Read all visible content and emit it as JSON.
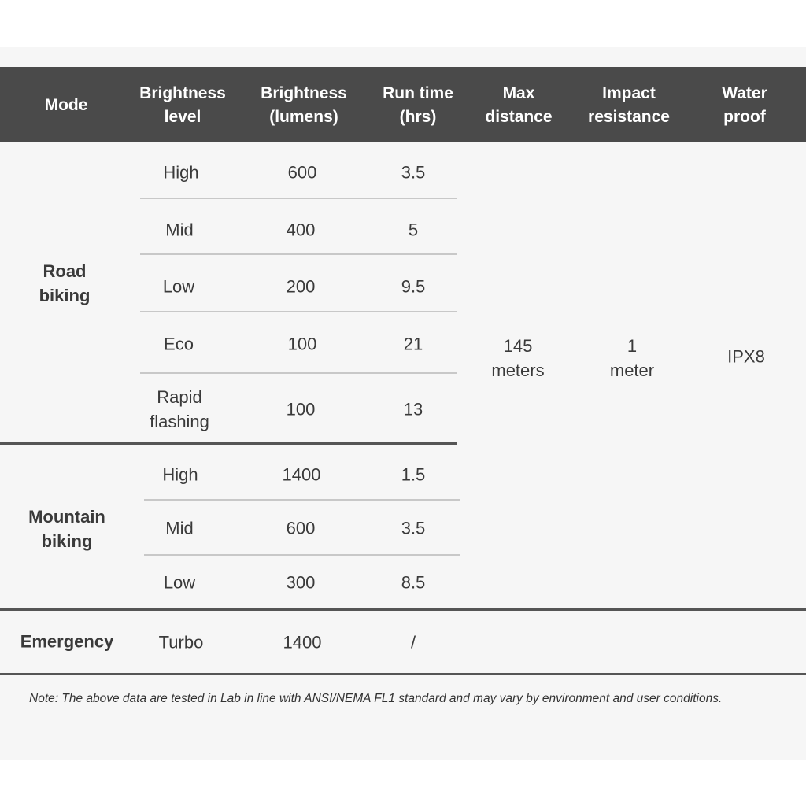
{
  "headers": [
    "Mode",
    "Brightness\nlevel",
    "Brightness\n(lumens)",
    "Run time\n(hrs)",
    "Max\ndistance",
    "Impact\nresistance",
    "Water\nproof"
  ],
  "groups": [
    {
      "mode": "Road\nbiking",
      "rows": [
        {
          "level": "High",
          "lumens": "600",
          "runtime": "3.5"
        },
        {
          "level": "Mid",
          "lumens": "400",
          "runtime": "5"
        },
        {
          "level": "Low",
          "lumens": "200",
          "runtime": "9.5"
        },
        {
          "level": "Eco",
          "lumens": "100",
          "runtime": "21"
        },
        {
          "level": "Rapid\nflashing",
          "lumens": "100",
          "runtime": "13"
        }
      ]
    },
    {
      "mode": "Mountain\nbiking",
      "rows": [
        {
          "level": "High",
          "lumens": "1400",
          "runtime": "1.5"
        },
        {
          "level": "Mid",
          "lumens": "600",
          "runtime": "3.5"
        },
        {
          "level": "Low",
          "lumens": "300",
          "runtime": "8.5"
        }
      ]
    },
    {
      "mode": "Emergency",
      "rows": [
        {
          "level": "Turbo",
          "lumens": "1400",
          "runtime": "/"
        }
      ]
    }
  ],
  "shared": {
    "max_distance": "145\nmeters",
    "impact_resistance": "1\nmeter",
    "water_proof": "IPX8"
  },
  "note": "Note: The above data are tested in Lab in line with ANSI/NEMA FL1 standard and may vary by environment and user conditions.",
  "colors": {
    "header_bg": "#4a4a4a",
    "panel_bg": "#f6f6f6"
  }
}
